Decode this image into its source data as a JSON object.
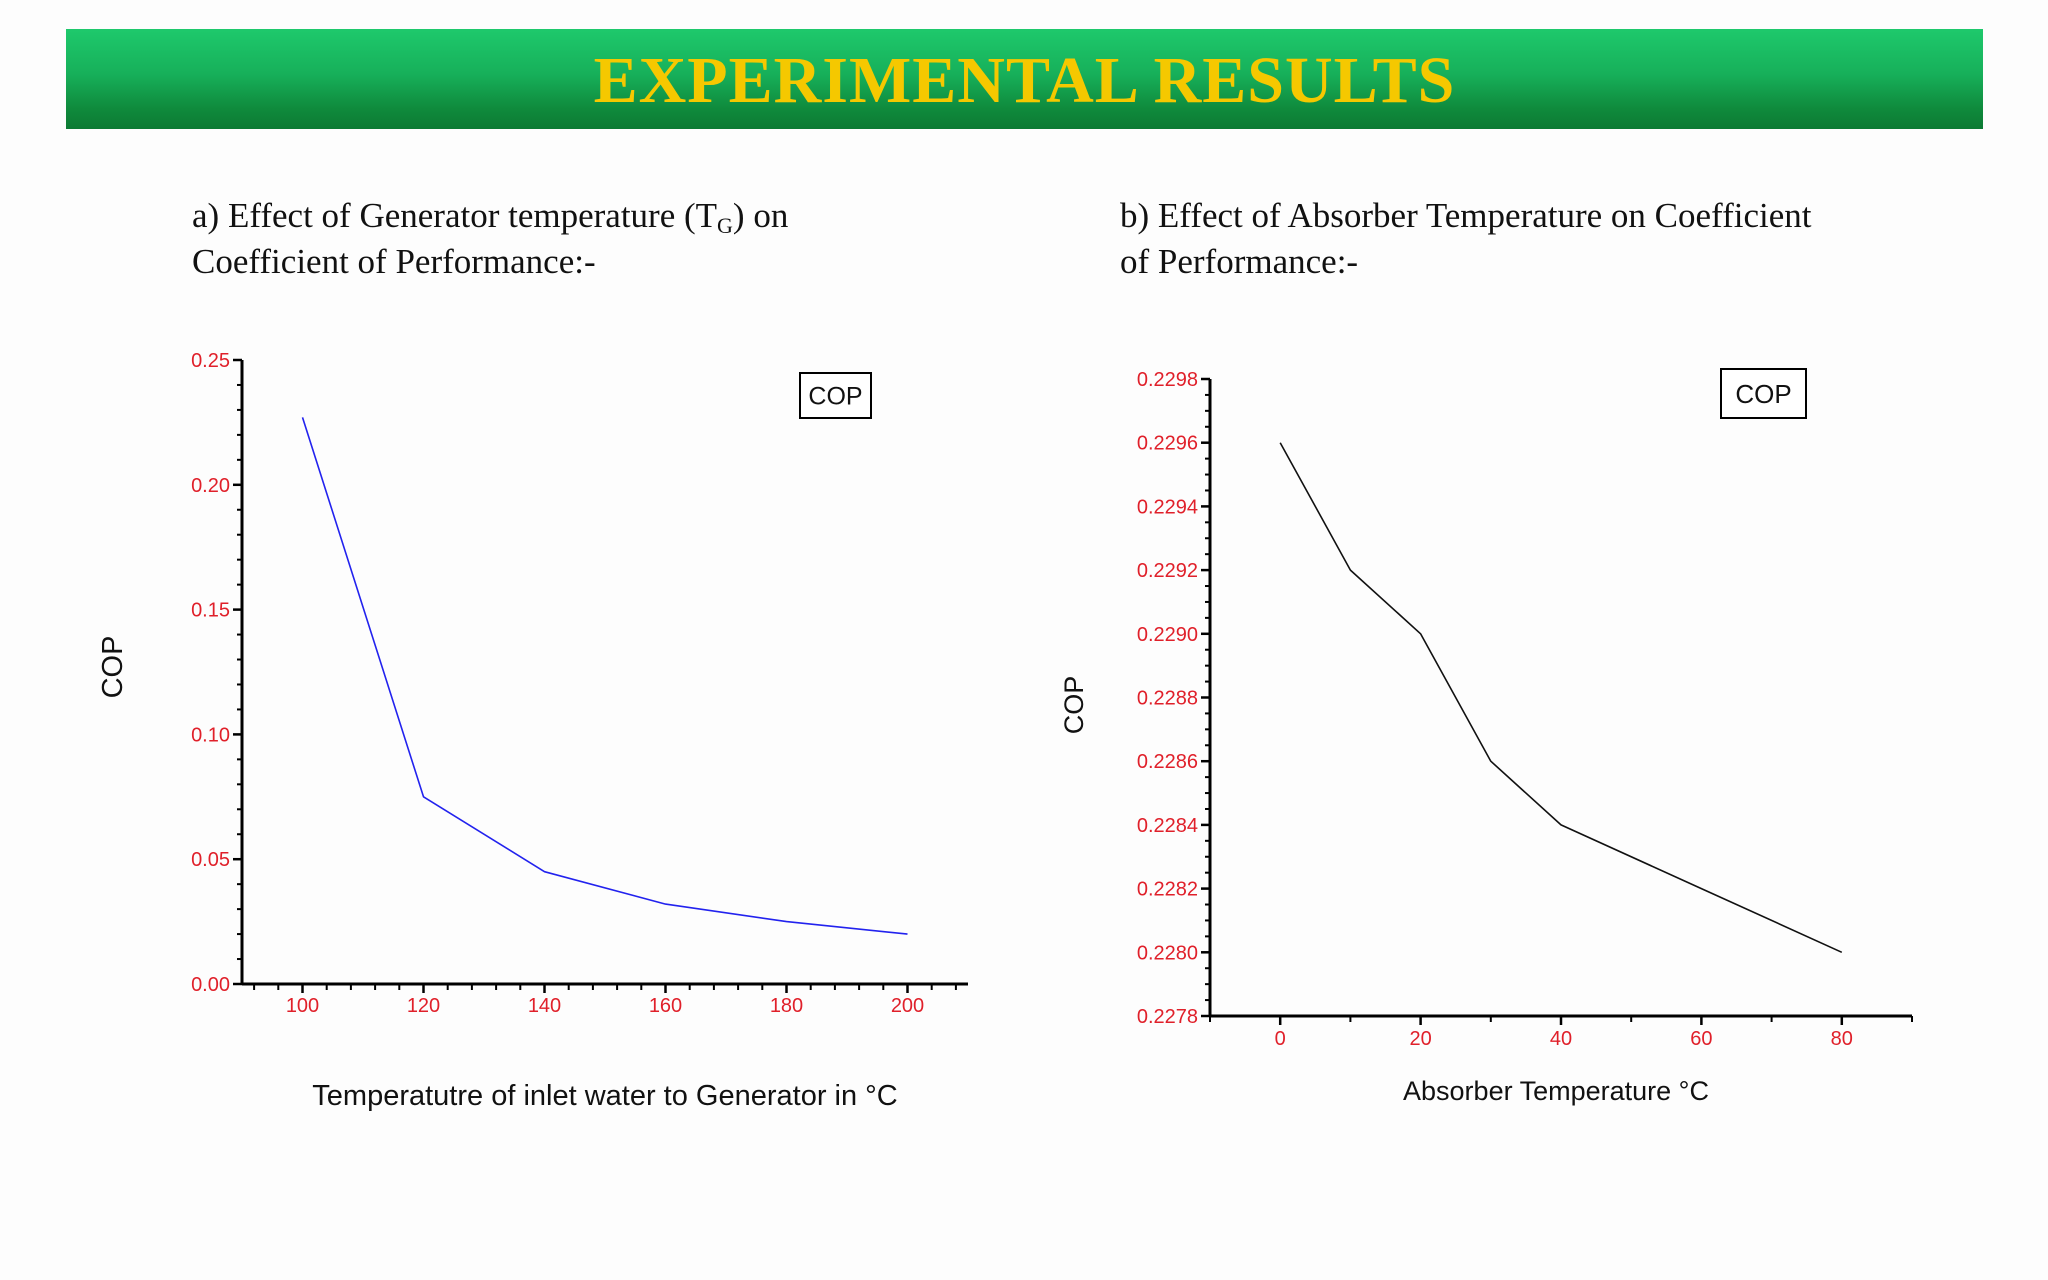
{
  "page": {
    "title": "EXPERIMENTAL RESULTS",
    "heading_a": {
      "line1_before": "a) Effect of  Generator temperature (T",
      "line1_sub": "G",
      "line1_after": ") on",
      "line2": "Coefficient of Performance:-"
    },
    "heading_b": {
      "line1": "b) Effect of Absorber Temperature on Coefficient",
      "line2": "of Performance:-"
    }
  },
  "colors": {
    "banner_green": "#17b05a",
    "title_yellow": "#f5c800",
    "tick_red": "#e0202a",
    "series_a": "#2222ee",
    "series_b": "#111111"
  },
  "chart_data": [
    {
      "type": "line",
      "xlabel": "Temperatutre of inlet  water to Generator in °C",
      "ylabel": "COP",
      "xlim": [
        90,
        210
      ],
      "ylim": [
        0,
        0.25
      ],
      "x_ticks": [
        100,
        120,
        140,
        160,
        180,
        200
      ],
      "y_ticks": [
        0.0,
        0.05,
        0.1,
        0.15,
        0.2,
        0.25
      ],
      "y_tick_labels": [
        "0.00",
        "0.05",
        "0.10",
        "0.15",
        "0.20",
        "0.25"
      ],
      "legend": "top-right",
      "series": [
        {
          "name": "COP",
          "color": "#2222ee",
          "x": [
            100,
            120,
            140,
            160,
            180,
            200
          ],
          "y": [
            0.227,
            0.075,
            0.045,
            0.032,
            0.025,
            0.02
          ]
        }
      ]
    },
    {
      "type": "line",
      "xlabel": "Absorber Temperature °C",
      "ylabel": "COP",
      "xlim": [
        -10,
        90
      ],
      "ylim": [
        0.2278,
        0.2298
      ],
      "x_ticks": [
        0,
        20,
        40,
        60,
        80
      ],
      "y_ticks": [
        0.2278,
        0.228,
        0.2282,
        0.2284,
        0.2286,
        0.2288,
        0.229,
        0.2292,
        0.2294,
        0.2296,
        0.2298
      ],
      "y_tick_labels": [
        "0.2278",
        "0.2280",
        "0.2282",
        "0.2284",
        "0.2286",
        "0.2288",
        "0.2290",
        "0.2292",
        "0.2294",
        "0.2296",
        "0.2298"
      ],
      "legend": "top-right",
      "series": [
        {
          "name": "COP",
          "color": "#111111",
          "x": [
            0,
            10,
            20,
            30,
            40,
            60,
            80
          ],
          "y": [
            0.2296,
            0.2292,
            0.229,
            0.2286,
            0.2284,
            0.2282,
            0.228
          ]
        }
      ]
    }
  ]
}
